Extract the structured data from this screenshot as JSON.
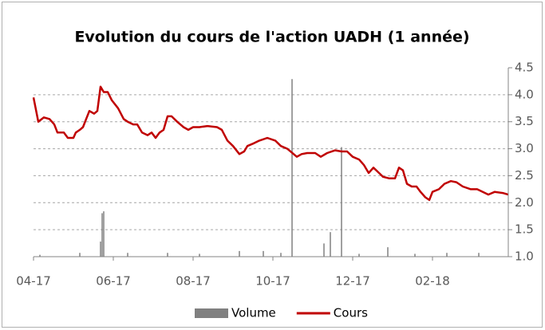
{
  "chart_data": {
    "type": "line",
    "title": "Evolution du cours de l'action UADH (1 année)",
    "xlim": [
      0,
      11.9
    ],
    "xticks": [
      {
        "value": 0,
        "label": "04-17"
      },
      {
        "value": 2,
        "label": "06-17"
      },
      {
        "value": 4,
        "label": "08-17"
      },
      {
        "value": 6,
        "label": "10-17"
      },
      {
        "value": 8,
        "label": "12-17"
      },
      {
        "value": 10,
        "label": "02-18"
      }
    ],
    "ylim": [
      1.0,
      4.5
    ],
    "yticks": [
      {
        "value": 1,
        "label": "1.0"
      },
      1.5,
      {
        "value": 2,
        "label": "2.0"
      },
      2.5,
      {
        "value": 3,
        "label": "3.0"
      },
      3.5,
      {
        "value": 4,
        "label": "4.0"
      },
      4.5
    ],
    "y2lim": [
      0,
      100
    ],
    "grid": true,
    "legend": "bottom",
    "series": [
      {
        "name": "Volume",
        "type": "bar",
        "axis": "y2",
        "color": "#808080",
        "x": [
          0.16,
          1.16,
          1.68,
          1.72,
          1.76,
          2.36,
          3.36,
          4.16,
          5.16,
          5.76,
          6.2,
          6.48,
          7.28,
          7.44,
          7.72,
          8.16,
          8.88,
          9.56,
          10.36,
          11.16
        ],
        "values": [
          1,
          2,
          8,
          23,
          24,
          2,
          2,
          1.5,
          3,
          3,
          2,
          94,
          7,
          13,
          58,
          1.5,
          5,
          1.5,
          2,
          2
        ]
      },
      {
        "name": "Cours",
        "type": "line",
        "color": "#c00000",
        "x": [
          0,
          0.12,
          0.26,
          0.4,
          0.52,
          0.6,
          0.76,
          0.86,
          1,
          1.06,
          1.16,
          1.24,
          1.32,
          1.4,
          1.52,
          1.6,
          1.68,
          1.76,
          1.86,
          1.96,
          2.12,
          2.26,
          2.36,
          2.5,
          2.6,
          2.72,
          2.86,
          2.96,
          3.06,
          3.16,
          3.26,
          3.36,
          3.46,
          3.6,
          3.76,
          3.88,
          4,
          4.16,
          4.36,
          4.6,
          4.72,
          4.86,
          5,
          5.16,
          5.28,
          5.36,
          5.52,
          5.66,
          5.86,
          6.06,
          6.2,
          6.36,
          6.52,
          6.6,
          6.72,
          6.86,
          7.06,
          7.2,
          7.36,
          7.56,
          7.72,
          7.86,
          8,
          8.16,
          8.28,
          8.4,
          8.52,
          8.66,
          8.76,
          8.92,
          9.06,
          9.16,
          9.26,
          9.36,
          9.48,
          9.6,
          9.7,
          9.82,
          9.92,
          10,
          10.16,
          10.3,
          10.46,
          10.6,
          10.76,
          10.96,
          11.12,
          11.26,
          11.4,
          11.56,
          11.76,
          11.9
        ],
        "values": [
          3.95,
          3.5,
          3.58,
          3.55,
          3.45,
          3.3,
          3.3,
          3.2,
          3.2,
          3.3,
          3.35,
          3.4,
          3.55,
          3.7,
          3.65,
          3.7,
          4.15,
          4.05,
          4.05,
          3.9,
          3.75,
          3.55,
          3.5,
          3.45,
          3.45,
          3.3,
          3.25,
          3.3,
          3.2,
          3.3,
          3.35,
          3.6,
          3.6,
          3.5,
          3.4,
          3.35,
          3.4,
          3.4,
          3.42,
          3.4,
          3.35,
          3.15,
          3.05,
          2.9,
          2.95,
          3.05,
          3.1,
          3.15,
          3.2,
          3.15,
          3.05,
          3.0,
          2.9,
          2.85,
          2.9,
          2.92,
          2.92,
          2.85,
          2.92,
          2.97,
          2.95,
          2.95,
          2.85,
          2.8,
          2.7,
          2.55,
          2.65,
          2.55,
          2.48,
          2.45,
          2.45,
          2.65,
          2.6,
          2.35,
          2.3,
          2.3,
          2.2,
          2.1,
          2.05,
          2.2,
          2.25,
          2.35,
          2.4,
          2.38,
          2.3,
          2.25,
          2.25,
          2.2,
          2.15,
          2.2,
          2.18,
          2.15
        ]
      }
    ]
  }
}
